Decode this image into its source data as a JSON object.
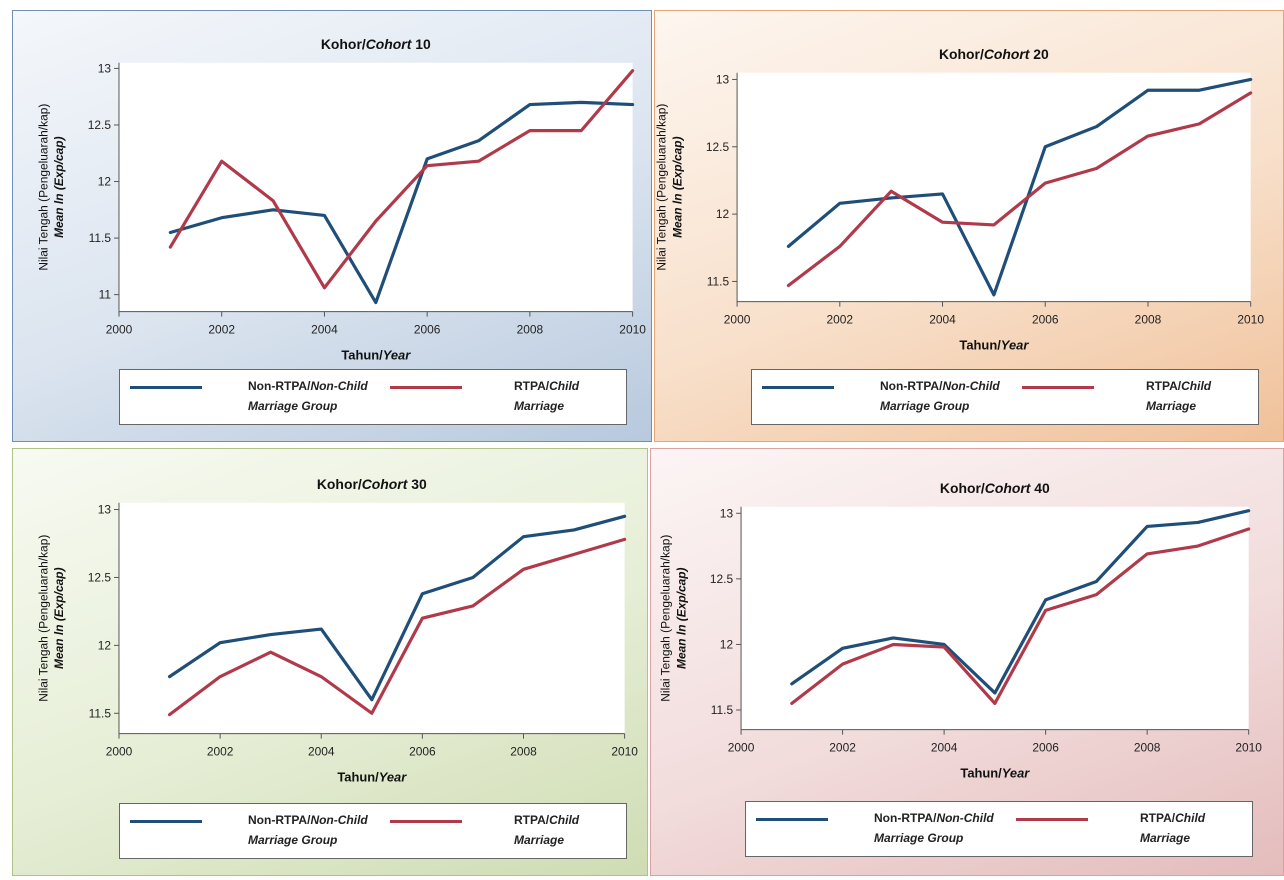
{
  "colors": {
    "non_child": "#1f4e79",
    "child": "#b03a4a"
  },
  "chart_data": [
    {
      "type": "line",
      "title_prefix": "Kohor/",
      "title_italic": "Cohort",
      "title_suffix": " 10",
      "xlabel_prefix": "Tahun/",
      "xlabel_italic": "Year",
      "ylabel_line1": "Nilai Tengah (Pengeluarah/kap)",
      "ylabel_line2": "Mean ln (Exp/cap)",
      "xlim": [
        2000,
        2010
      ],
      "ylim": [
        10.85,
        13.05
      ],
      "xticks": [
        "2000",
        "2002",
        "2004",
        "2006",
        "2008",
        "2010"
      ],
      "yticks": [
        "11",
        "11.5",
        "12",
        "12.5",
        "13"
      ],
      "x": [
        2001,
        2002,
        2003,
        2004,
        2005,
        2006,
        2007,
        2008,
        2009,
        2010
      ],
      "series": [
        {
          "name_prefix": "Non-RTPA/",
          "name_italic": "Non-Child",
          "name_line2": "Marriage Group",
          "values": [
            11.55,
            11.68,
            11.75,
            11.7,
            10.93,
            12.2,
            12.36,
            12.68,
            12.7,
            12.68
          ]
        },
        {
          "name_prefix": "RTPA/",
          "name_italic": "Child",
          "name_line2": "Marriage",
          "values": [
            11.42,
            12.18,
            11.83,
            11.06,
            11.65,
            12.14,
            12.18,
            12.45,
            12.45,
            12.98
          ]
        }
      ]
    },
    {
      "type": "line",
      "title_prefix": "Kohor/",
      "title_italic": "Cohort",
      "title_suffix": " 20",
      "xlabel_prefix": "Tahun/",
      "xlabel_italic": "Year",
      "ylabel_line1": "Nilai Tengah (Pengeluarah/kap)",
      "ylabel_line2": "Mean ln (Exp/cap)",
      "xlim": [
        2000,
        2010
      ],
      "ylim": [
        11.35,
        13.05
      ],
      "xticks": [
        "2000",
        "2002",
        "2004",
        "2006",
        "2008",
        "2010"
      ],
      "yticks": [
        "11.5",
        "12",
        "12.5",
        "13"
      ],
      "x": [
        2001,
        2002,
        2003,
        2004,
        2005,
        2006,
        2007,
        2008,
        2009,
        2010
      ],
      "series": [
        {
          "name_prefix": "Non-RTPA/",
          "name_italic": "Non-Child",
          "name_line2": "Marriage Group",
          "values": [
            11.76,
            12.08,
            12.12,
            12.15,
            11.4,
            12.5,
            12.65,
            12.92,
            12.92,
            13.0
          ]
        },
        {
          "name_prefix": "RTPA/",
          "name_italic": "Child",
          "name_line2": "Marriage",
          "values": [
            11.47,
            11.76,
            12.17,
            11.94,
            11.92,
            12.23,
            12.34,
            12.58,
            12.67,
            12.9
          ]
        }
      ]
    },
    {
      "type": "line",
      "title_prefix": "Kohor/",
      "title_italic": "Cohort",
      "title_suffix": " 30",
      "xlabel_prefix": "Tahun/",
      "xlabel_italic": "Year",
      "ylabel_line1": "Nilai Tengah (Pengeluarah/kap)",
      "ylabel_line2": "Mean ln (Exp/cap)",
      "xlim": [
        2000,
        2010
      ],
      "ylim": [
        11.35,
        13.05
      ],
      "xticks": [
        "2000",
        "2002",
        "2004",
        "2006",
        "2008",
        "2010"
      ],
      "yticks": [
        "11.5",
        "12",
        "12.5",
        "13"
      ],
      "x": [
        2001,
        2002,
        2003,
        2004,
        2005,
        2006,
        2007,
        2008,
        2009,
        2010
      ],
      "series": [
        {
          "name_prefix": "Non-RTPA/",
          "name_italic": "Non-Child",
          "name_line2": "Marriage Group",
          "values": [
            11.77,
            12.02,
            12.08,
            12.12,
            11.6,
            12.38,
            12.5,
            12.8,
            12.85,
            12.95
          ]
        },
        {
          "name_prefix": "RTPA/",
          "name_italic": "Child",
          "name_line2": "Marriage",
          "values": [
            11.49,
            11.77,
            11.95,
            11.77,
            11.5,
            12.2,
            12.29,
            12.56,
            12.67,
            12.78
          ]
        }
      ]
    },
    {
      "type": "line",
      "title_prefix": "Kohor/",
      "title_italic": "Cohort",
      "title_suffix": " 40",
      "xlabel_prefix": "Tahun/",
      "xlabel_italic": "Year",
      "ylabel_line1": "Nilai Tengah (Pengeluarah/kap)",
      "ylabel_line2": "Mean ln (Exp/cap)",
      "xlim": [
        2000,
        2010
      ],
      "ylim": [
        11.35,
        13.05
      ],
      "xticks": [
        "2000",
        "2002",
        "2004",
        "2006",
        "2008",
        "2010"
      ],
      "yticks": [
        "11.5",
        "12",
        "12.5",
        "13"
      ],
      "x": [
        2001,
        2002,
        2003,
        2004,
        2005,
        2006,
        2007,
        2008,
        2009,
        2010
      ],
      "series": [
        {
          "name_prefix": "Non-RTPA/",
          "name_italic": "Non-Child",
          "name_line2": "Marriage Group",
          "values": [
            11.7,
            11.97,
            12.05,
            12.0,
            11.63,
            12.34,
            12.48,
            12.9,
            12.93,
            13.02
          ]
        },
        {
          "name_prefix": "RTPA/",
          "name_italic": "Child",
          "name_line2": "Marriage",
          "values": [
            11.55,
            11.85,
            12.0,
            11.98,
            11.55,
            12.26,
            12.38,
            12.69,
            12.75,
            12.88
          ]
        }
      ]
    }
  ]
}
